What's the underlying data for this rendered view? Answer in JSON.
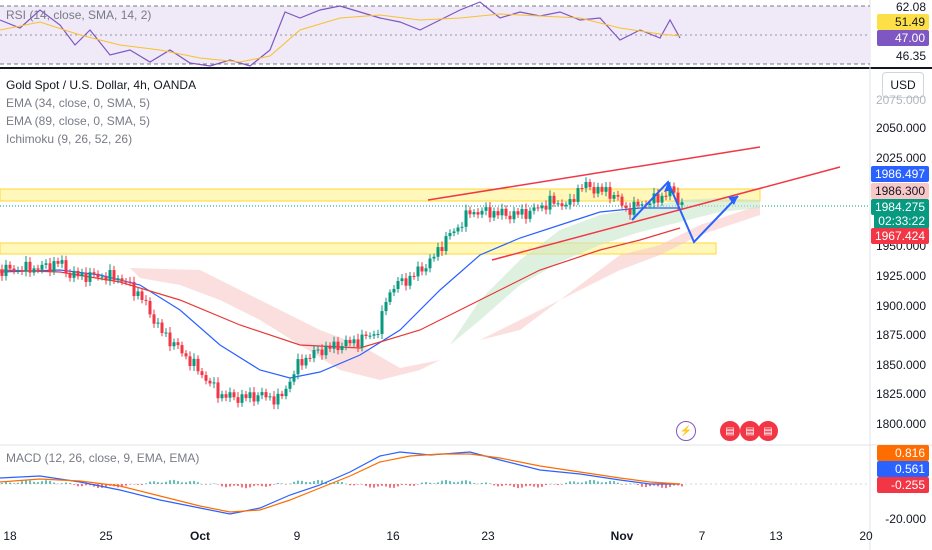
{
  "rsi": {
    "legend": "RSI (14, close, SMA, 14, 2)",
    "scale": [
      "62.08",
      "46.35"
    ],
    "badges": [
      {
        "text": "51.49",
        "color": "#fde047",
        "fg": "#131722"
      },
      {
        "text": "47.00",
        "color": "#7e57c2",
        "fg": "#ffffff"
      }
    ]
  },
  "main": {
    "title": "Gold Spot / U.S. Dollar, 4h, OANDA",
    "indicators": [
      "EMA (34, close, 0, SMA, 5)",
      "EMA (89, close, 0, SMA, 5)",
      "Ichimoku (9, 26, 52, 26)"
    ],
    "currency": "USD",
    "price_scale": [
      "2075.000",
      "2050.000",
      "2025.000",
      "1950.000",
      "1925.000",
      "1900.000",
      "1875.000",
      "1850.000",
      "1825.000",
      "1800.000"
    ],
    "badges": [
      {
        "text": "1986.497",
        "color": "#2962ff",
        "fg": "#ffffff"
      },
      {
        "text": "1986.300",
        "color": "#f8c8c8",
        "fg": "#131722"
      },
      {
        "text": "1984.275",
        "color": "#089981",
        "fg": "#ffffff"
      },
      {
        "text": "02:33:22",
        "color": "#089981",
        "fg": "#ffffff"
      },
      {
        "text": "1967.424",
        "color": "#f23645",
        "fg": "#ffffff"
      }
    ]
  },
  "macd": {
    "legend": "MACD (12, 26, close, 9, EMA, EMA)",
    "scale": [
      "-20.000"
    ],
    "badges": [
      {
        "text": "0.816",
        "color": "#ff6d00",
        "fg": "#ffffff"
      },
      {
        "text": "0.561",
        "color": "#2962ff",
        "fg": "#ffffff"
      },
      {
        "text": "-0.255",
        "color": "#f23645",
        "fg": "#ffffff"
      }
    ]
  },
  "time_axis": [
    "18",
    "25",
    "Oct",
    "9",
    "16",
    "23",
    "Nov",
    "7",
    "13",
    "20"
  ],
  "events": {
    "lightning_icon": "flash-icon",
    "flags": [
      "us-flag-icon",
      "us-flag-icon",
      "us-flag-icon"
    ]
  }
}
